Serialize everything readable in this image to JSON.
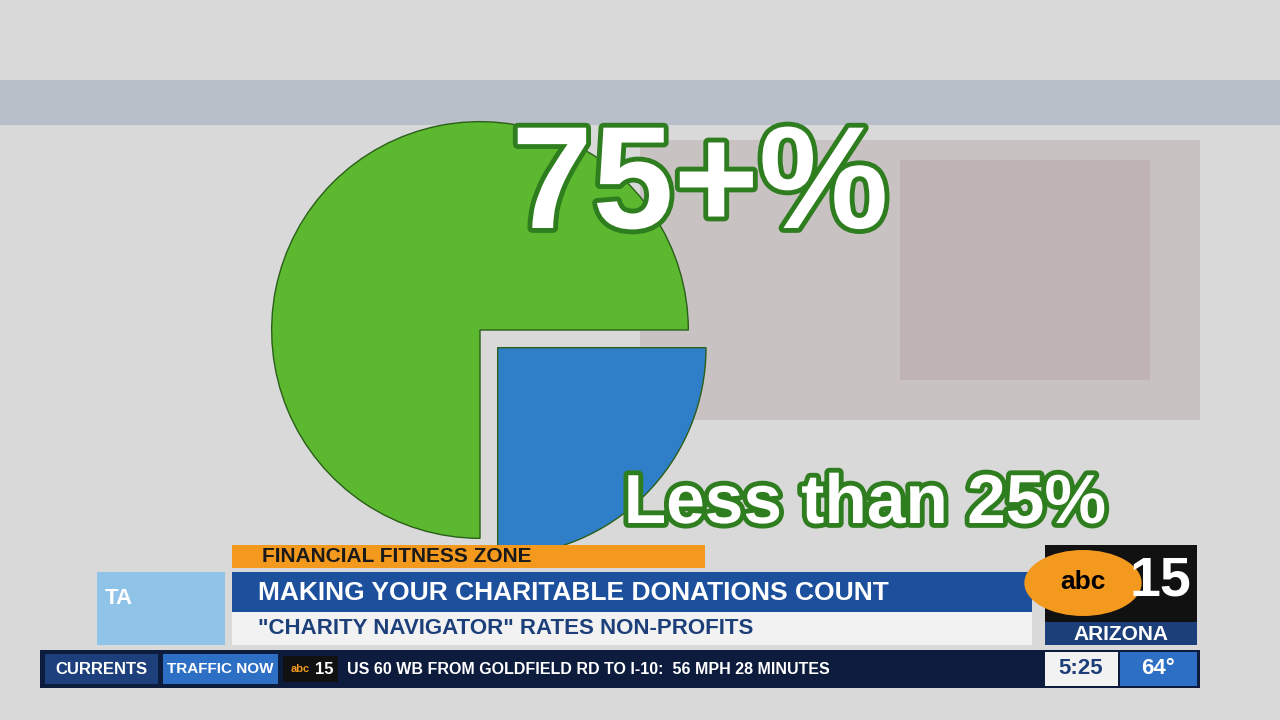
{
  "chart_data": {
    "type": "pie",
    "values": [
      75,
      25
    ],
    "value_labels": [
      "75+%",
      "Less than 25%"
    ],
    "colors": [
      "#5cb82e",
      "#2f7fc8"
    ],
    "data_labels": true
  },
  "broadcast": {
    "segment": "FINANCIAL FITNESS ZONE",
    "headline": "MAKING YOUR CHARITABLE DONATIONS COUNT",
    "subheadline": "\"CHARITY NAVIGATOR\" RATES NON-PROFITS",
    "anchor_tag": "TA",
    "station": {
      "network": "abc",
      "channel": "15",
      "region": "ARIZONA"
    },
    "ticker": {
      "tabs": [
        "CURRENTS",
        "TRAFFIC NOW"
      ],
      "logo": {
        "network": "abc",
        "channel": "15"
      },
      "text": "US 60 WB FROM GOLDFIELD RD TO I-10:  56 MPH 28 MINUTES"
    },
    "time": "5:25",
    "temperature": "64°"
  }
}
